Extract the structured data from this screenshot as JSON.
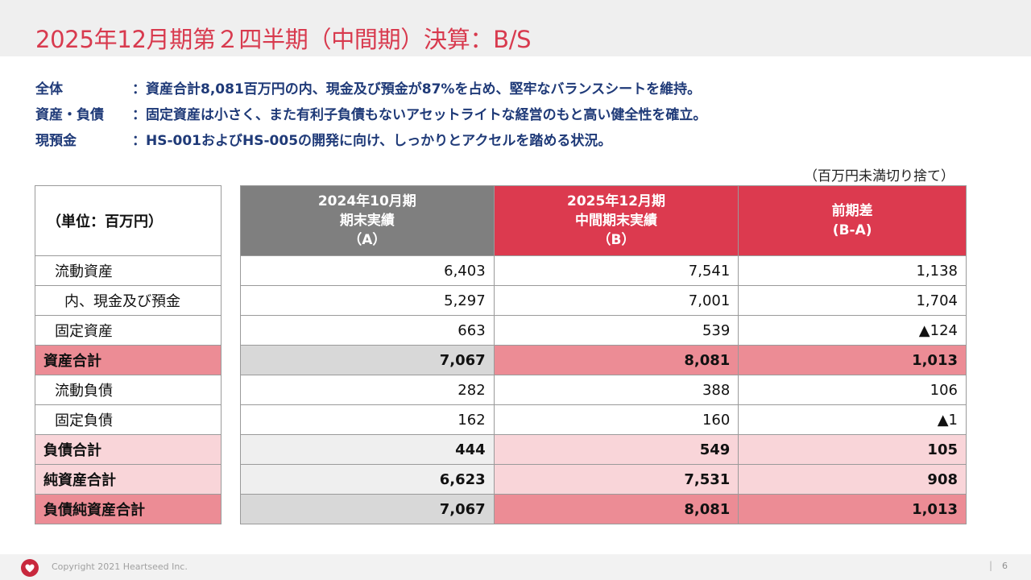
{
  "title": "2025年12月期第２四半期（中間期）決算：B/S",
  "summary": [
    {
      "label": "全体",
      "text": "：資産合計8,081百万円の内、現金及び預金が87%を占め、堅牢なバランスシートを維持。"
    },
    {
      "label": "資産・負債",
      "text": "：固定資産は小さく、また有利子負債もないアセットライトな経営のもと高い健全性を確立。"
    },
    {
      "label": "現預金",
      "text": "：HS-001およびHS-005の開発に向け、しっかりとアクセルを踏める状況。"
    }
  ],
  "unit_note": "（百万円未満切り捨て）",
  "table": {
    "unit_label": "（単位：百万円）",
    "col_a": {
      "line1": "2024年10月期",
      "line2": "期末実績",
      "line3": "（A）"
    },
    "col_b": {
      "line1": "2025年12月期",
      "line2": "中間期末実績",
      "line3": "（B）"
    },
    "col_diff": {
      "line1": "前期差",
      "line2": "(B-A)"
    },
    "rows": [
      {
        "label": "流動資産",
        "a": "6,403",
        "b": "7,541",
        "diff": "1,138"
      },
      {
        "label": "内、現金及び預金",
        "a": "5,297",
        "b": "7,001",
        "diff": "1,704"
      },
      {
        "label": "固定資産",
        "a": "663",
        "b": "539",
        "diff": "▲124"
      },
      {
        "label": "資産合計",
        "a": "7,067",
        "b": "8,081",
        "diff": "1,013"
      },
      {
        "label": "流動負債",
        "a": "282",
        "b": "388",
        "diff": "106"
      },
      {
        "label": "固定負債",
        "a": "162",
        "b": "160",
        "diff": "▲1"
      },
      {
        "label": "負債合計",
        "a": "444",
        "b": "549",
        "diff": "105"
      },
      {
        "label": "純資産合計",
        "a": "6,623",
        "b": "7,531",
        "diff": "908"
      },
      {
        "label": "負債純資産合計",
        "a": "7,067",
        "b": "8,081",
        "diff": "1,013"
      }
    ]
  },
  "footer": {
    "copyright": "Copyright 2021 Heartseed Inc.",
    "page_separator": "|",
    "page_number": "6",
    "logo_icon": "heart-logo-icon"
  },
  "colors": {
    "accent_red": "#dc3a4f",
    "title_red": "#d83a4e",
    "summary_blue": "#1f3a78",
    "header_gray": "#7f7f7f"
  }
}
